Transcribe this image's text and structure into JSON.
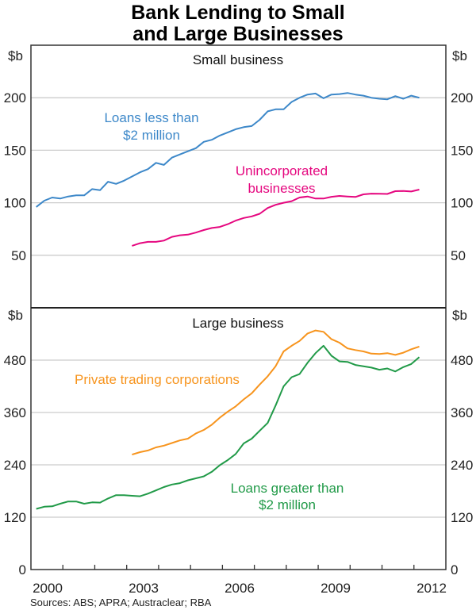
{
  "title_line1": "Bank Lending to Small",
  "title_line2": "and Large Businesses",
  "source": "Sources: ABS; APRA; Austraclear; RBA",
  "colors": {
    "blue": "#3d88c9",
    "pink": "#e5077f",
    "orange": "#f7941d",
    "green": "#219a48",
    "grid": "#cccccc"
  },
  "chart_data": [
    {
      "type": "line",
      "panel_title": "Small business",
      "ylabel": "$b",
      "ylim": [
        0,
        250
      ],
      "yticks": [
        50,
        100,
        150,
        200
      ],
      "xlim": [
        2000,
        2013
      ],
      "xtick_labels": [
        "2000",
        "2003",
        "2006",
        "2009",
        "2012"
      ],
      "grid": true,
      "series": [
        {
          "name": "Loans less than $2 million",
          "name_lines": [
            "Loans less than",
            "$2 million"
          ],
          "color": "#3d88c9",
          "x": [
            "2000-03",
            "2000-06",
            "2000-09",
            "2000-12",
            "2001-03",
            "2001-06",
            "2001-09",
            "2001-12",
            "2002-03",
            "2002-06",
            "2002-09",
            "2002-12",
            "2003-03",
            "2003-06",
            "2003-09",
            "2003-12",
            "2004-03",
            "2004-06",
            "2004-09",
            "2004-12",
            "2005-03",
            "2005-06",
            "2005-09",
            "2005-12",
            "2006-03",
            "2006-06",
            "2006-09",
            "2006-12",
            "2007-03",
            "2007-06",
            "2007-09",
            "2007-12",
            "2008-03",
            "2008-06",
            "2008-09",
            "2008-12",
            "2009-03",
            "2009-06",
            "2009-09",
            "2009-12",
            "2010-03",
            "2010-06",
            "2010-09",
            "2010-12",
            "2011-03",
            "2011-06",
            "2011-09",
            "2011-12",
            "2012-03"
          ],
          "values": [
            96,
            102,
            105,
            104,
            106,
            107,
            107,
            113,
            112,
            120,
            118,
            121,
            125,
            129,
            132,
            138,
            136,
            143,
            146,
            149,
            152,
            158,
            160,
            164,
            167,
            170,
            172,
            173,
            179,
            187,
            189,
            189,
            196,
            200,
            203,
            204,
            199.5,
            203,
            203.5,
            204.5,
            203,
            202,
            200,
            199,
            198.5,
            201.5,
            199,
            202,
            200
          ]
        },
        {
          "name": "Unincorporated businesses",
          "name_lines": [
            "Unincorporated",
            "businesses"
          ],
          "color": "#e5077f",
          "x": [
            "2003-03",
            "2003-06",
            "2003-09",
            "2003-12",
            "2004-03",
            "2004-06",
            "2004-09",
            "2004-12",
            "2005-03",
            "2005-06",
            "2005-09",
            "2005-12",
            "2006-03",
            "2006-06",
            "2006-09",
            "2006-12",
            "2007-03",
            "2007-06",
            "2007-09",
            "2007-12",
            "2008-03",
            "2008-06",
            "2008-09",
            "2008-12",
            "2009-03",
            "2009-06",
            "2009-09",
            "2009-12",
            "2010-03",
            "2010-06",
            "2010-09",
            "2010-12",
            "2011-03",
            "2011-06",
            "2011-09",
            "2011-12",
            "2012-03"
          ],
          "values": [
            59,
            61.5,
            62.8,
            62.8,
            64,
            67.5,
            69,
            69.6,
            71.6,
            74,
            76,
            77,
            79.6,
            83,
            85.5,
            87,
            89.5,
            95,
            98,
            100,
            101.5,
            105,
            106,
            104,
            104,
            105.7,
            106.5,
            106,
            105.5,
            108,
            108.7,
            108.5,
            108.4,
            111,
            111.2,
            110.7,
            112.5
          ]
        }
      ]
    },
    {
      "type": "line",
      "panel_title": "Large business",
      "ylabel": "$b",
      "ylim": [
        0,
        600
      ],
      "yticks": [
        0,
        120,
        240,
        360,
        480
      ],
      "xlim": [
        2000,
        2013
      ],
      "xtick_labels": [
        "2000",
        "2003",
        "2006",
        "2009",
        "2012"
      ],
      "grid": true,
      "series": [
        {
          "name": "Private trading corporations",
          "name_lines": [
            "Private trading corporations"
          ],
          "color": "#f7941d",
          "x": [
            "2003-03",
            "2003-06",
            "2003-09",
            "2003-12",
            "2004-03",
            "2004-06",
            "2004-09",
            "2004-12",
            "2005-03",
            "2005-06",
            "2005-09",
            "2005-12",
            "2006-03",
            "2006-06",
            "2006-09",
            "2006-12",
            "2007-03",
            "2007-06",
            "2007-09",
            "2007-12",
            "2008-03",
            "2008-06",
            "2008-09",
            "2008-12",
            "2009-03",
            "2009-06",
            "2009-09",
            "2009-12",
            "2010-03",
            "2010-06",
            "2010-09",
            "2010-12",
            "2011-03",
            "2011-06",
            "2011-09",
            "2011-12",
            "2012-03"
          ],
          "values": [
            263.5,
            269,
            273,
            280,
            284,
            290,
            296,
            300,
            312,
            320,
            332,
            348,
            362,
            374,
            390,
            404,
            424,
            443,
            466,
            500,
            513,
            524,
            541,
            548,
            545,
            528,
            520,
            507,
            503,
            500,
            495,
            494,
            496,
            492,
            497,
            505,
            511
          ]
        },
        {
          "name": "Loans greater than $2 million",
          "name_lines": [
            "Loans greater than",
            "$2 million"
          ],
          "color": "#219a48",
          "x": [
            "2000-03",
            "2000-06",
            "2000-09",
            "2000-12",
            "2001-03",
            "2001-06",
            "2001-09",
            "2001-12",
            "2002-03",
            "2002-06",
            "2002-09",
            "2002-12",
            "2003-03",
            "2003-06",
            "2003-09",
            "2003-12",
            "2004-03",
            "2004-06",
            "2004-09",
            "2004-12",
            "2005-03",
            "2005-06",
            "2005-09",
            "2005-12",
            "2006-03",
            "2006-06",
            "2006-09",
            "2006-12",
            "2007-03",
            "2007-06",
            "2007-09",
            "2007-12",
            "2008-03",
            "2008-06",
            "2008-09",
            "2008-12",
            "2009-03",
            "2009-06",
            "2009-09",
            "2009-12",
            "2010-03",
            "2010-06",
            "2010-09",
            "2010-12",
            "2011-03",
            "2011-06",
            "2011-09",
            "2011-12",
            "2012-03"
          ],
          "values": [
            139,
            144,
            145,
            151,
            156,
            156,
            151,
            154,
            153.5,
            163,
            170.6,
            170.6,
            169,
            168,
            174,
            181.5,
            189,
            195,
            198,
            204.5,
            209,
            213.6,
            224,
            239,
            251,
            265,
            289,
            300,
            318,
            336,
            376,
            420,
            441,
            448,
            474,
            496,
            513,
            490,
            477,
            476,
            469,
            466,
            463,
            458,
            461,
            454,
            464,
            471,
            487
          ]
        }
      ]
    }
  ]
}
